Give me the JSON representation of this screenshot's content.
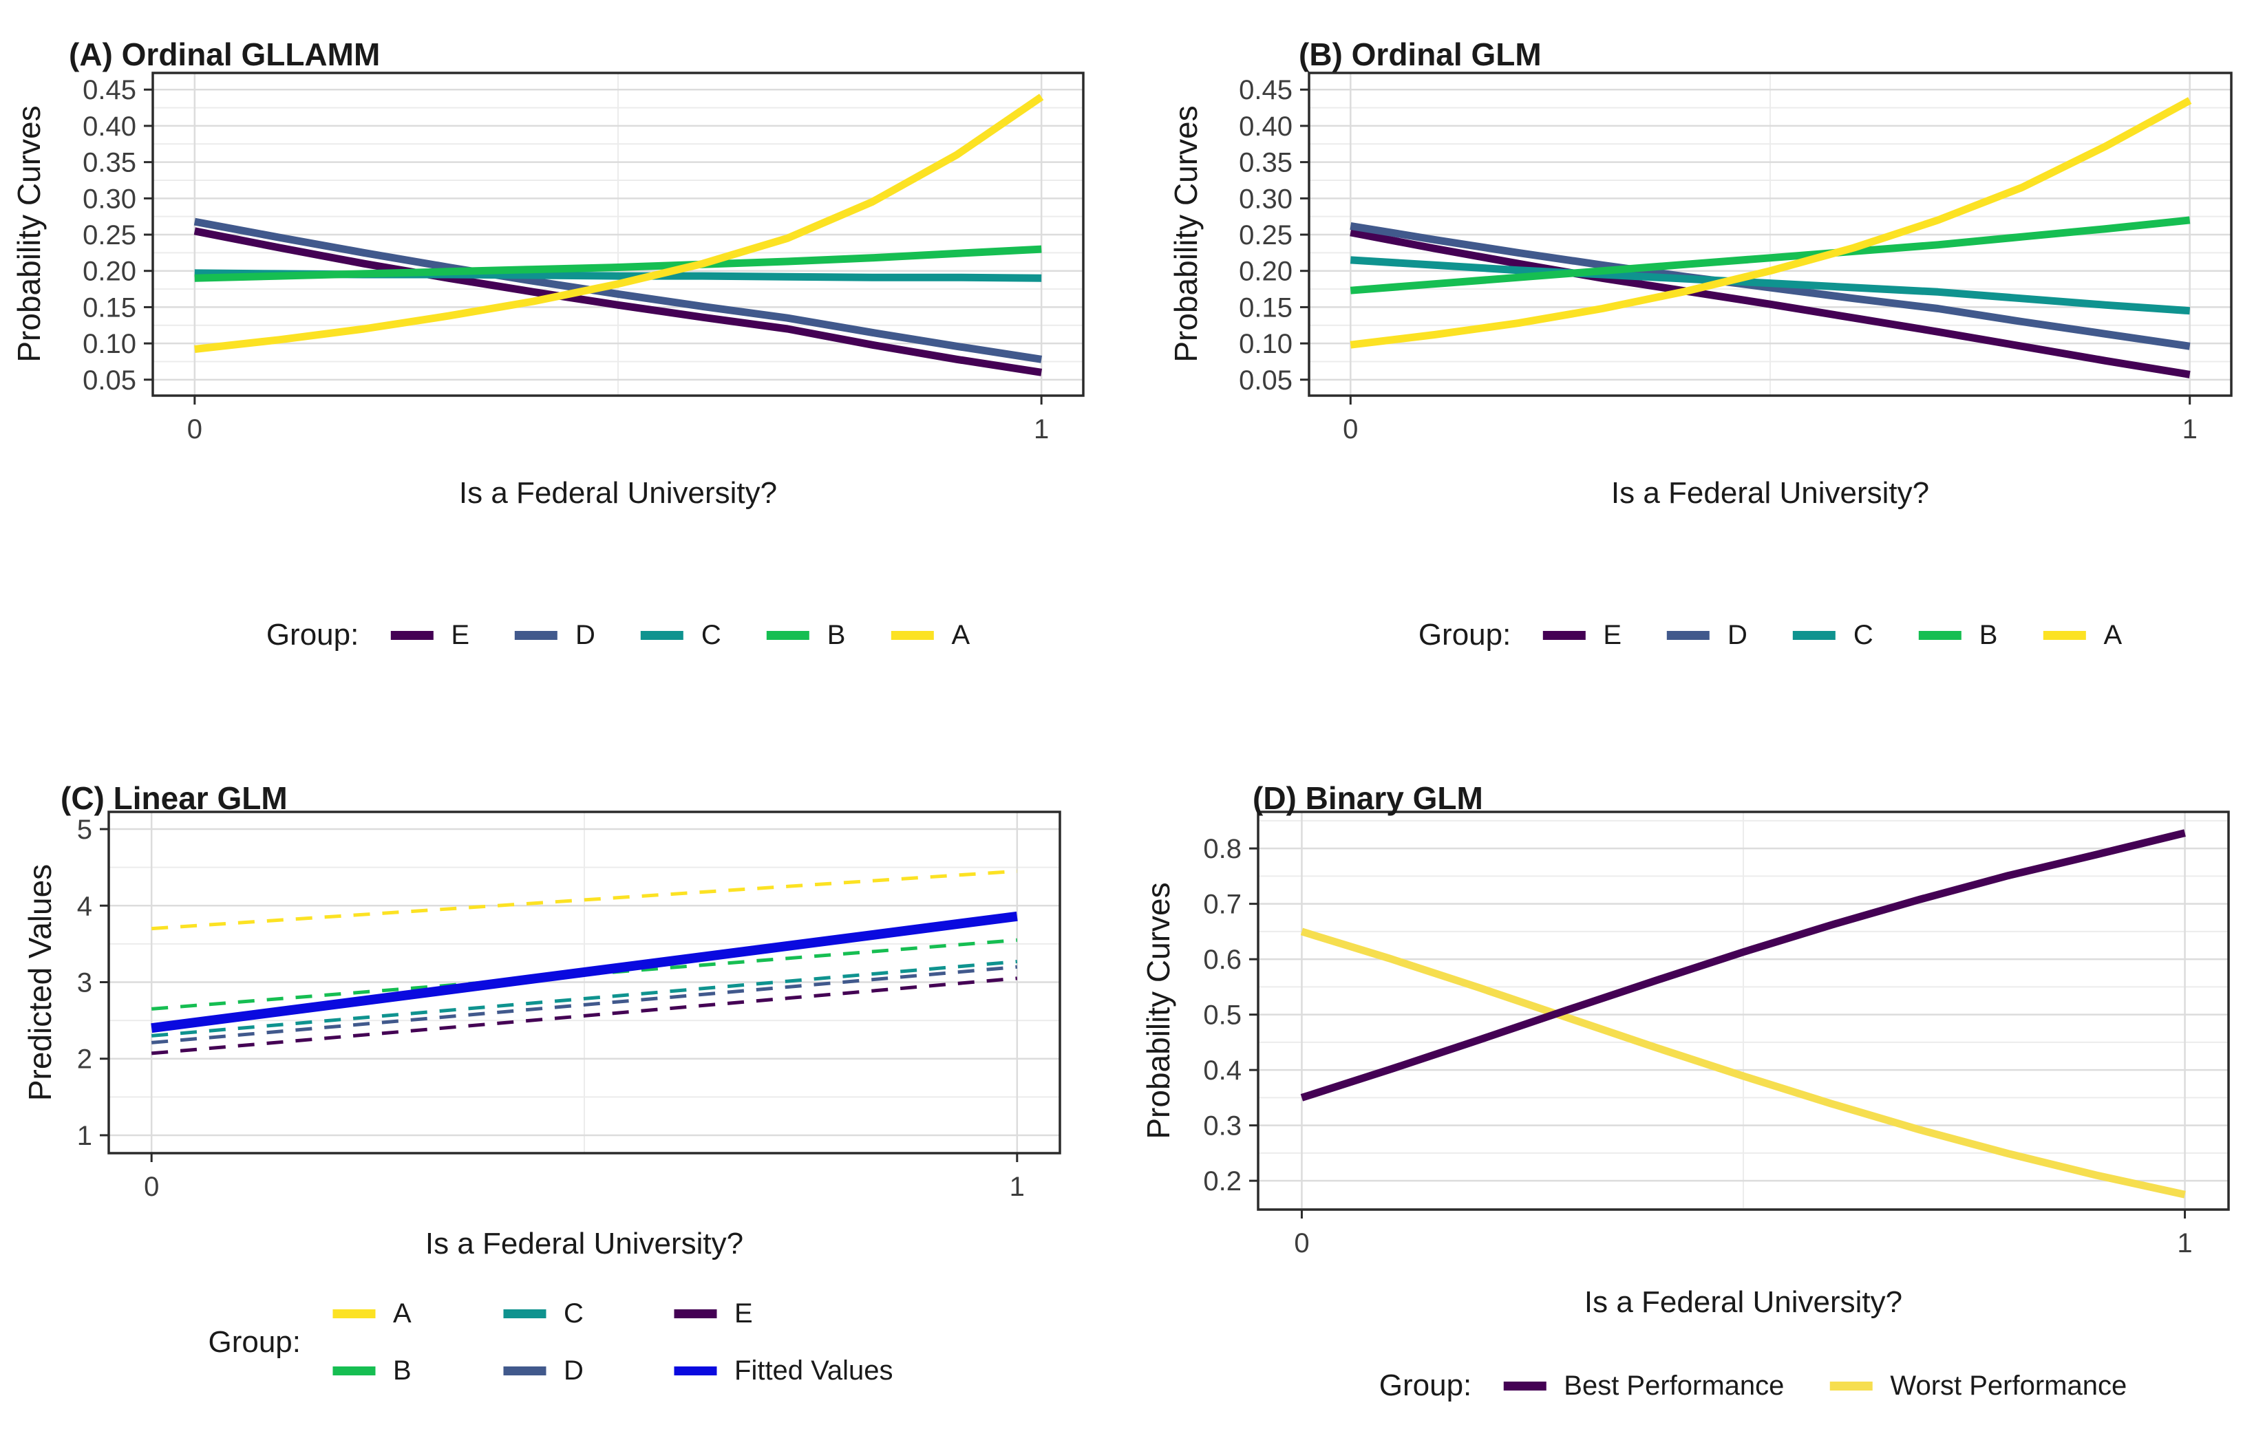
{
  "chart_data": [
    {
      "panel": "A",
      "type": "line",
      "title": "(A) Ordinal GLLAMM",
      "xlabel": "Is a Federal University?",
      "ylabel": "Probability Curves",
      "x_ticks": {
        "values": [
          0,
          1
        ],
        "labels": [
          "0",
          "1"
        ]
      },
      "y_ticks": {
        "values": [
          0.05,
          0.1,
          0.15,
          0.2,
          0.25,
          0.3,
          0.35,
          0.4,
          0.45
        ],
        "labels": [
          "0.05",
          "0.10",
          "0.15",
          "0.20",
          "0.25",
          "0.30",
          "0.35",
          "0.40",
          "0.45"
        ]
      },
      "ylim": [
        0.028,
        0.473
      ],
      "xlim": [
        0,
        1
      ],
      "x_pad": 0.045,
      "grid": "major+minor",
      "legend": {
        "title": "Group:",
        "position": "bottom",
        "rows": [
          [
            {
              "label": "E",
              "color": "#440154"
            },
            {
              "label": "D",
              "color": "#41598C"
            },
            {
              "label": "C",
              "color": "#0F938F"
            },
            {
              "label": "B",
              "color": "#16BE52"
            },
            {
              "label": "A",
              "color": "#FCE223"
            }
          ]
        ]
      },
      "series": [
        {
          "name": "E",
          "color": "#440154",
          "width": 11,
          "dash": null,
          "x": [
            0,
            0.1,
            0.2,
            0.3,
            0.4,
            0.5,
            0.6,
            0.7,
            0.8,
            0.9,
            1
          ],
          "y": [
            0.255,
            0.232,
            0.21,
            0.19,
            0.171,
            0.153,
            0.136,
            0.12,
            0.098,
            0.078,
            0.06
          ]
        },
        {
          "name": "D",
          "color": "#41598C",
          "width": 11,
          "dash": null,
          "x": [
            0,
            0.1,
            0.2,
            0.3,
            0.4,
            0.5,
            0.6,
            0.7,
            0.8,
            0.9,
            1
          ],
          "y": [
            0.268,
            0.246,
            0.225,
            0.205,
            0.186,
            0.168,
            0.151,
            0.135,
            0.115,
            0.096,
            0.078
          ]
        },
        {
          "name": "C",
          "color": "#0F938F",
          "width": 11,
          "dash": null,
          "x": [
            0,
            0.1,
            0.2,
            0.3,
            0.4,
            0.5,
            0.6,
            0.7,
            0.8,
            0.9,
            1
          ],
          "y": [
            0.197,
            0.196,
            0.195,
            0.195,
            0.194,
            0.193,
            0.193,
            0.192,
            0.191,
            0.191,
            0.19
          ]
        },
        {
          "name": "B",
          "color": "#16BE52",
          "width": 11,
          "dash": null,
          "x": [
            0,
            0.1,
            0.2,
            0.3,
            0.4,
            0.5,
            0.6,
            0.7,
            0.8,
            0.9,
            1
          ],
          "y": [
            0.19,
            0.193,
            0.196,
            0.199,
            0.202,
            0.205,
            0.209,
            0.213,
            0.218,
            0.224,
            0.23
          ]
        },
        {
          "name": "A",
          "color": "#FCE223",
          "width": 11,
          "dash": null,
          "x": [
            0,
            0.1,
            0.2,
            0.3,
            0.4,
            0.5,
            0.6,
            0.7,
            0.8,
            0.9,
            1
          ],
          "y": [
            0.092,
            0.105,
            0.12,
            0.138,
            0.158,
            0.182,
            0.21,
            0.245,
            0.295,
            0.36,
            0.44
          ]
        }
      ]
    },
    {
      "panel": "B",
      "type": "line",
      "title": "(B) Ordinal GLM",
      "xlabel": "Is a Federal University?",
      "ylabel": "Probability Curves",
      "x_ticks": {
        "values": [
          0,
          1
        ],
        "labels": [
          "0",
          "1"
        ]
      },
      "y_ticks": {
        "values": [
          0.05,
          0.1,
          0.15,
          0.2,
          0.25,
          0.3,
          0.35,
          0.4,
          0.45
        ],
        "labels": [
          "0.05",
          "0.10",
          "0.15",
          "0.20",
          "0.25",
          "0.30",
          "0.35",
          "0.40",
          "0.45"
        ]
      },
      "ylim": [
        0.028,
        0.473
      ],
      "xlim": [
        0,
        1
      ],
      "x_pad": 0.045,
      "grid": "major+minor",
      "legend": {
        "title": "Group:",
        "position": "bottom",
        "rows": [
          [
            {
              "label": "E",
              "color": "#440154"
            },
            {
              "label": "D",
              "color": "#41598C"
            },
            {
              "label": "C",
              "color": "#0F938F"
            },
            {
              "label": "B",
              "color": "#16BE52"
            },
            {
              "label": "A",
              "color": "#FCE223"
            }
          ]
        ]
      },
      "series": [
        {
          "name": "E",
          "color": "#440154",
          "width": 11,
          "dash": null,
          "x": [
            0,
            0.1,
            0.2,
            0.3,
            0.4,
            0.5,
            0.6,
            0.7,
            0.8,
            0.9,
            1
          ],
          "y": [
            0.253,
            0.231,
            0.21,
            0.19,
            0.172,
            0.154,
            0.135,
            0.116,
            0.096,
            0.076,
            0.057
          ]
        },
        {
          "name": "D",
          "color": "#41598C",
          "width": 11,
          "dash": null,
          "x": [
            0,
            0.1,
            0.2,
            0.3,
            0.4,
            0.5,
            0.6,
            0.7,
            0.8,
            0.9,
            1
          ],
          "y": [
            0.262,
            0.243,
            0.225,
            0.208,
            0.192,
            0.177,
            0.162,
            0.148,
            0.13,
            0.113,
            0.096
          ]
        },
        {
          "name": "C",
          "color": "#0F938F",
          "width": 11,
          "dash": null,
          "x": [
            0,
            0.1,
            0.2,
            0.3,
            0.4,
            0.5,
            0.6,
            0.7,
            0.8,
            0.9,
            1
          ],
          "y": [
            0.215,
            0.208,
            0.201,
            0.195,
            0.189,
            0.183,
            0.177,
            0.171,
            0.162,
            0.153,
            0.145
          ]
        },
        {
          "name": "B",
          "color": "#16BE52",
          "width": 11,
          "dash": null,
          "x": [
            0,
            0.1,
            0.2,
            0.3,
            0.4,
            0.5,
            0.6,
            0.7,
            0.8,
            0.9,
            1
          ],
          "y": [
            0.173,
            0.182,
            0.191,
            0.2,
            0.209,
            0.218,
            0.227,
            0.236,
            0.247,
            0.258,
            0.27
          ]
        },
        {
          "name": "A",
          "color": "#FCE223",
          "width": 11,
          "dash": null,
          "x": [
            0,
            0.1,
            0.2,
            0.3,
            0.4,
            0.5,
            0.6,
            0.7,
            0.8,
            0.9,
            1
          ],
          "y": [
            0.098,
            0.112,
            0.128,
            0.148,
            0.172,
            0.2,
            0.232,
            0.27,
            0.315,
            0.372,
            0.435
          ]
        }
      ]
    },
    {
      "panel": "C",
      "type": "line",
      "title": "(C) Linear GLM",
      "xlabel": "Is a Federal University?",
      "ylabel": "Predicted Values",
      "x_ticks": {
        "values": [
          0,
          1
        ],
        "labels": [
          "0",
          "1"
        ]
      },
      "y_ticks": {
        "values": [
          1,
          2,
          3,
          4,
          5
        ],
        "labels": [
          "1",
          "2",
          "3",
          "4",
          "5"
        ]
      },
      "ylim": [
        0.766,
        5.225
      ],
      "xlim": [
        0,
        1
      ],
      "x_pad": 0.045,
      "grid": "major+minor",
      "legend": {
        "title": "Group:",
        "position": "bottom",
        "rows": [
          [
            {
              "label": "A",
              "color": "#FCE223"
            },
            {
              "label": "C",
              "color": "#0F938F"
            },
            {
              "label": "E",
              "color": "#440154"
            }
          ],
          [
            {
              "label": "B",
              "color": "#16BE52"
            },
            {
              "label": "D",
              "color": "#41598C"
            },
            {
              "label": "Fitted Values",
              "color": "#0A0ADF"
            }
          ]
        ]
      },
      "series": [
        {
          "name": "A",
          "color": "#FCE223",
          "width": 5,
          "dash": "24 18",
          "x": [
            0,
            1
          ],
          "y": [
            3.7,
            4.45
          ]
        },
        {
          "name": "B",
          "color": "#16BE52",
          "width": 5,
          "dash": "24 18",
          "x": [
            0,
            1
          ],
          "y": [
            2.65,
            3.55
          ]
        },
        {
          "name": "C",
          "color": "#0F938F",
          "width": 5,
          "dash": "24 18",
          "x": [
            0,
            1
          ],
          "y": [
            2.3,
            3.27
          ]
        },
        {
          "name": "D",
          "color": "#41598C",
          "width": 5,
          "dash": "24 18",
          "x": [
            0,
            1
          ],
          "y": [
            2.21,
            3.2
          ]
        },
        {
          "name": "E",
          "color": "#440154",
          "width": 5,
          "dash": "24 18",
          "x": [
            0,
            1
          ],
          "y": [
            2.07,
            3.05
          ]
        },
        {
          "name": "Fitted Values",
          "color": "#0A0ADF",
          "width": 14,
          "dash": null,
          "x": [
            0,
            1
          ],
          "y": [
            2.4,
            3.86
          ]
        }
      ]
    },
    {
      "panel": "D",
      "type": "line",
      "title": "(D) Binary GLM",
      "xlabel": "Is a Federal University?",
      "ylabel": "Probability Curves",
      "x_ticks": {
        "values": [
          0,
          1
        ],
        "labels": [
          "0",
          "1"
        ]
      },
      "y_ticks": {
        "values": [
          0.2,
          0.3,
          0.4,
          0.5,
          0.6,
          0.7,
          0.8
        ],
        "labels": [
          "0.2",
          "0.3",
          "0.4",
          "0.5",
          "0.6",
          "0.7",
          "0.8"
        ]
      },
      "ylim": [
        0.148,
        0.866
      ],
      "xlim": [
        0,
        1
      ],
      "x_pad": 0.045,
      "grid": "major+minor",
      "legend": {
        "title": "Group:",
        "position": "bottom",
        "rows": [
          [
            {
              "label": "Best Performance",
              "color": "#440154"
            },
            {
              "label": "Worst Performance",
              "color": "#F6DE4F"
            }
          ]
        ]
      },
      "series": [
        {
          "name": "Worst Performance",
          "color": "#F6DE4F",
          "width": 11,
          "dash": null,
          "x": [
            0,
            0.1,
            0.2,
            0.3,
            0.4,
            0.5,
            0.6,
            0.7,
            0.8,
            0.9,
            1
          ],
          "y": [
            0.65,
            0.601,
            0.549,
            0.495,
            0.441,
            0.389,
            0.339,
            0.292,
            0.249,
            0.21,
            0.175
          ]
        },
        {
          "name": "Best Performance",
          "color": "#440154",
          "width": 11,
          "dash": null,
          "x": [
            0,
            0.1,
            0.2,
            0.3,
            0.4,
            0.5,
            0.6,
            0.7,
            0.8,
            0.9,
            1
          ],
          "y": [
            0.35,
            0.401,
            0.454,
            0.508,
            0.561,
            0.613,
            0.662,
            0.708,
            0.751,
            0.789,
            0.828
          ]
        }
      ]
    }
  ]
}
